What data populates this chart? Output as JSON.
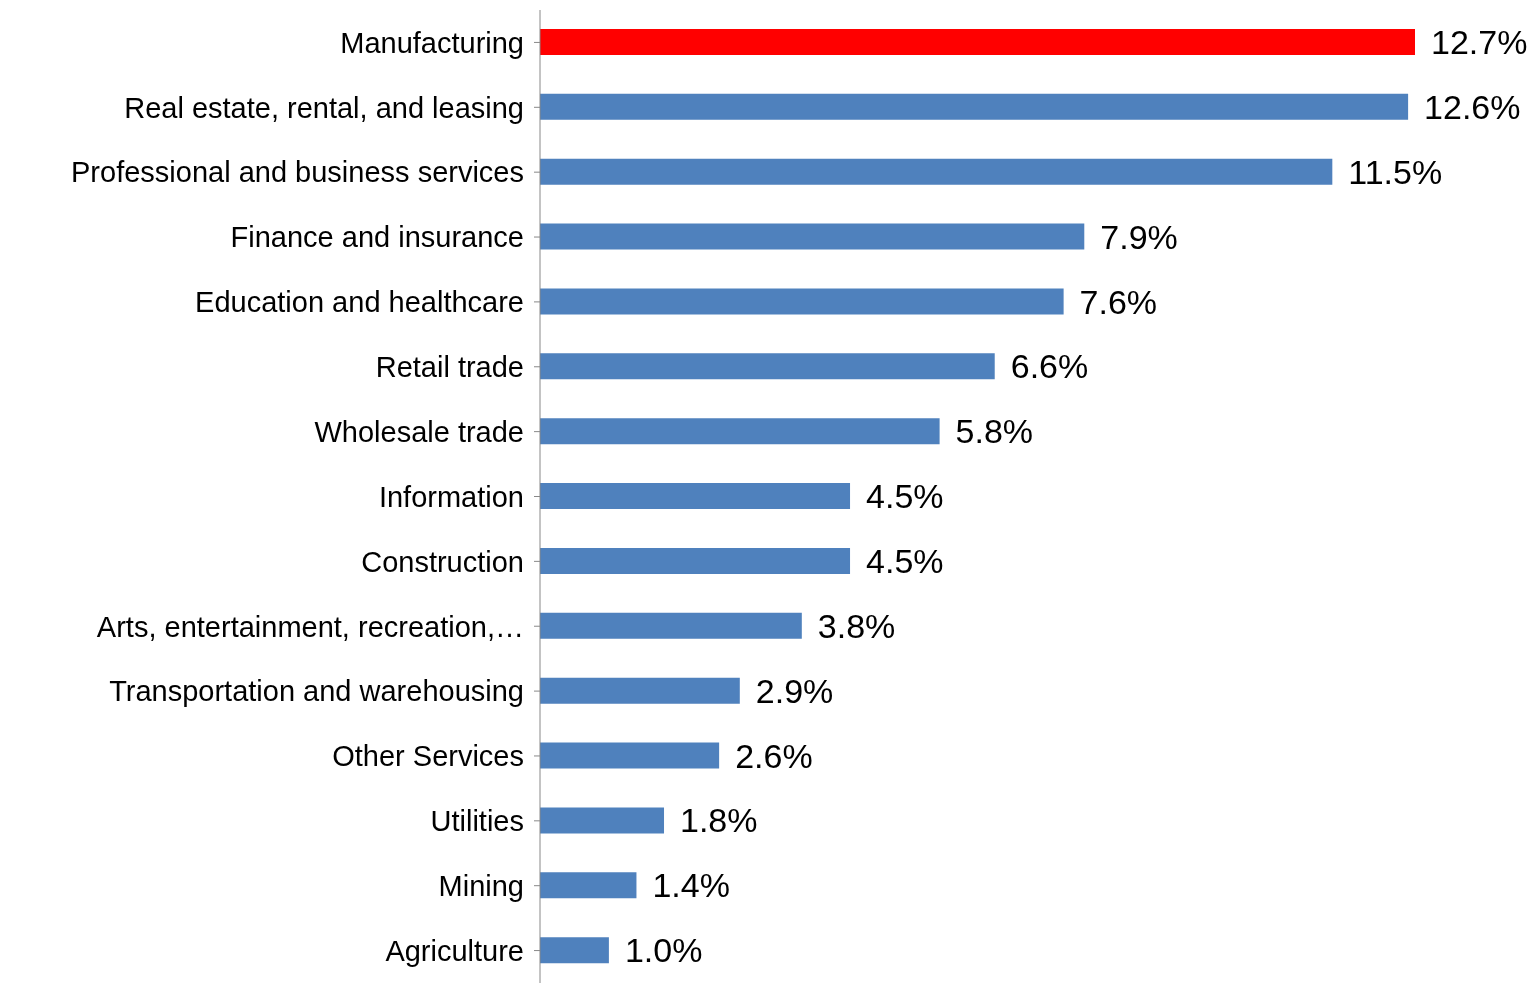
{
  "chart_data": {
    "type": "bar",
    "orientation": "horizontal",
    "categories": [
      "Manufacturing",
      "Real estate, rental, and leasing",
      "Professional and business services",
      "Finance and insurance",
      "Education and healthcare",
      "Retail trade",
      "Wholesale trade",
      "Information",
      "Construction",
      "Arts, entertainment, recreation,…",
      "Transportation and warehousing",
      "Other Services",
      "Utilities",
      "Mining",
      "Agriculture"
    ],
    "values": [
      12.7,
      12.6,
      11.5,
      7.9,
      7.6,
      6.6,
      5.8,
      4.5,
      4.5,
      3.8,
      2.9,
      2.6,
      1.8,
      1.4,
      1.0
    ],
    "colors": [
      "#ff0000",
      "#4f81bd",
      "#4f81bd",
      "#4f81bd",
      "#4f81bd",
      "#4f81bd",
      "#4f81bd",
      "#4f81bd",
      "#4f81bd",
      "#4f81bd",
      "#4f81bd",
      "#4f81bd",
      "#4f81bd",
      "#4f81bd",
      "#4f81bd"
    ],
    "value_labels": [
      "12.7%",
      "12.6%",
      "11.5%",
      "7.9%",
      "7.6%",
      "6.6%",
      "5.8%",
      "4.5%",
      "4.5%",
      "3.8%",
      "2.9%",
      "2.6%",
      "1.8%",
      "1.4%",
      "1.0%"
    ]
  }
}
